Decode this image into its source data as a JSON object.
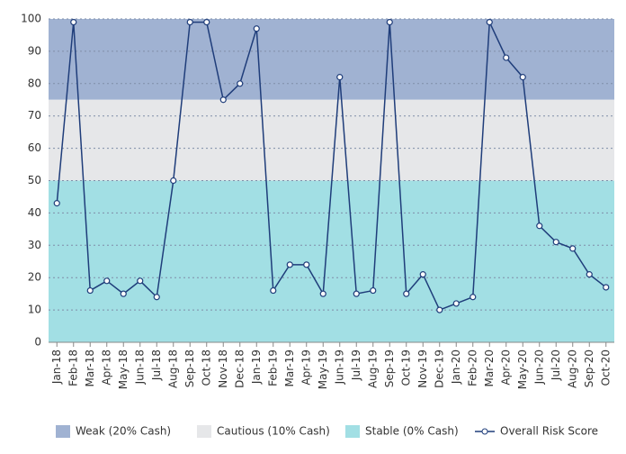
{
  "chart_data": {
    "type": "line",
    "categories": [
      "Jan-18",
      "Feb-18",
      "Mar-18",
      "Apr-18",
      "May-18",
      "Jun-18",
      "Jul-18",
      "Aug-18",
      "Sep-18",
      "Oct-18",
      "Nov-18",
      "Dec-18",
      "Jan-19",
      "Feb-19",
      "Mar-19",
      "Apr-19",
      "May-19",
      "Jun-19",
      "Jul-19",
      "Aug-19",
      "Sep-19",
      "Oct-19",
      "Nov-19",
      "Dec-19",
      "Jan-20",
      "Feb-20",
      "Mar-20",
      "Apr-20",
      "May-20",
      "Jun-20",
      "Jul-20",
      "Aug-20",
      "Sep-20",
      "Oct-20"
    ],
    "bands": [
      {
        "name": "Weak (20% Cash)",
        "color": "#a0b2d2",
        "from": 75,
        "to": 100
      },
      {
        "name": "Cautious (10% Cash)",
        "color": "#e6e7e9",
        "from": 50,
        "to": 75
      },
      {
        "name": "Stable (0% Cash)",
        "color": "#a2dfe4",
        "from": 0,
        "to": 50
      }
    ],
    "series": [
      {
        "name": "Overall Risk Score",
        "color": "#1f3d7a",
        "values": [
          43,
          99,
          16,
          19,
          15,
          19,
          14,
          50,
          99,
          99,
          75,
          80,
          97,
          16,
          24,
          24,
          15,
          82,
          15,
          16,
          99,
          15,
          21,
          10,
          12,
          14,
          99,
          88,
          82,
          36,
          31,
          29,
          21,
          17
        ]
      }
    ],
    "ylim": [
      0,
      100
    ],
    "yticks": [
      0,
      10,
      20,
      30,
      40,
      50,
      60,
      70,
      80,
      90,
      100
    ],
    "grid": true
  }
}
